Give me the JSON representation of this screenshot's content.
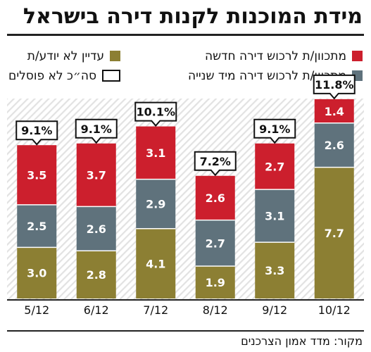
{
  "title": "מידת המוכנות לקנות דירה בישראל",
  "source": "מקור: מדד אמון הצרכנים",
  "legend": {
    "new_apartment": "מתכוון/ת לרכוש דירה חדשה",
    "secondhand": "מתכוון/ת לרכוש דירה מיד שנייה",
    "undecided": "עדיין לא יודע/ת",
    "total": "סה״כ לא פוסלים"
  },
  "colors": {
    "new_apartment": "#cc1f2d",
    "secondhand": "#5f727c",
    "undecided": "#8c7f33",
    "stripes": "#e2e2e2"
  },
  "chart_data": {
    "type": "bar",
    "stacked": true,
    "categories": [
      "5/12",
      "6/12",
      "7/12",
      "8/12",
      "9/12",
      "10/12"
    ],
    "series": [
      {
        "name": "עדיין לא יודע/ת",
        "key": "undecided",
        "values": [
          3.0,
          2.8,
          4.1,
          1.9,
          3.3,
          7.7
        ]
      },
      {
        "name": "מתכוון/ת לרכוש דירה מיד שנייה",
        "key": "secondhand",
        "values": [
          2.5,
          2.6,
          2.9,
          2.7,
          3.1,
          2.6
        ]
      },
      {
        "name": "מתכוון/ת לרכוש דירה חדשה",
        "key": "new_apartment",
        "values": [
          3.5,
          3.7,
          3.1,
          2.6,
          2.7,
          1.4
        ]
      }
    ],
    "value_labels": [
      [
        "3.0",
        "2.8",
        "4.1",
        "1.9",
        "3.3",
        "7.7"
      ],
      [
        "2.5",
        "2.6",
        "2.9",
        "2.7",
        "3.1",
        "2.6"
      ],
      [
        "3.5",
        "3.7",
        "3.1",
        "2.6",
        "2.7",
        "1.4"
      ]
    ],
    "totals": [
      "9.1%",
      "9.1%",
      "10.1%",
      "7.2%",
      "9.1%",
      "11.8%"
    ],
    "total_values": [
      9.1,
      9.1,
      10.1,
      7.2,
      9.1,
      11.8
    ],
    "ylim": [
      0,
      12.5
    ]
  }
}
